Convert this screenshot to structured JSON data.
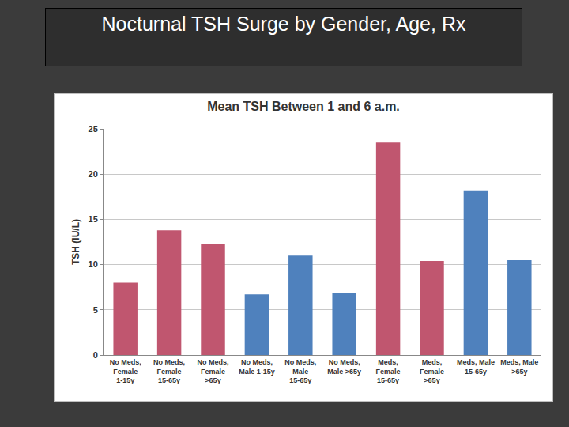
{
  "heading": "Nocturnal TSH Surge by Gender, Age, Rx",
  "chart_data": {
    "type": "bar",
    "title": "Mean TSH Between 1 and 6 a.m.",
    "y_label": "TSH (IU/L)",
    "categories": [
      "No Meds, Female 1-15y",
      "No Meds, Female 15-65y",
      "No Meds, Female >65y",
      "No Meds, Male 1-15y",
      "No Meds, Male 15-65y",
      "No Meds, Male >65y",
      "Meds, Female 15-65y",
      "Meds, Female >65y",
      "Meds, Male 15-65y",
      "Meds, Male >65y"
    ],
    "values": [
      8.0,
      13.8,
      12.3,
      6.7,
      11.0,
      6.9,
      23.5,
      10.4,
      18.2,
      10.5
    ],
    "colors": [
      "#c0566f",
      "#c0566f",
      "#c0566f",
      "#4f81bd",
      "#4f81bd",
      "#4f81bd",
      "#c0566f",
      "#c0566f",
      "#4f81bd",
      "#4f81bd"
    ],
    "ylim": [
      0,
      25
    ],
    "yticks": [
      0,
      5,
      10,
      15,
      20,
      25
    ],
    "grid": true
  }
}
